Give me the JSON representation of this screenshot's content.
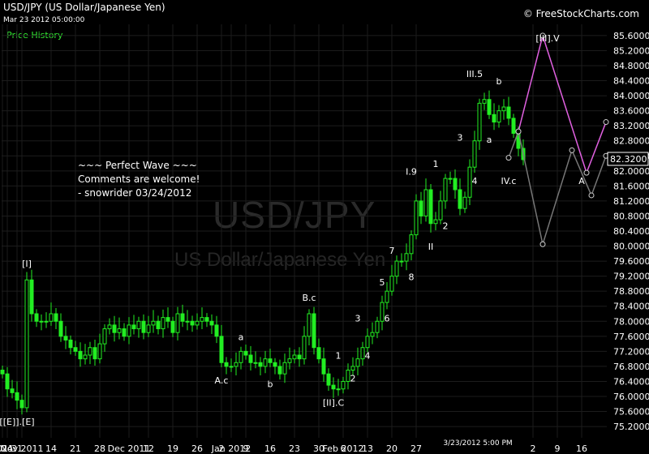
{
  "header": {
    "title": "USD/JPY (US Dollar/Japanese Yen)",
    "timestamp": "Mar 23 2012 05:00:00",
    "panel_label": "Price History",
    "brand": "© FreeStockCharts.com"
  },
  "watermark": {
    "symbol": "USD/JPY",
    "name": "US Dollar/Japanese Yen"
  },
  "comments": [
    "~~~ Perfect Wave ~~~",
    "Comments are welcome!",
    "- snowrider  03/24/2012"
  ],
  "chart_data": {
    "type": "candlestick",
    "last_price_label": "82.3200",
    "last_price": 82.32,
    "ylim": [
      74.9,
      85.9
    ],
    "y_ticks": [
      "85.6000",
      "85.2000",
      "84.8000",
      "84.4000",
      "84.0000",
      "83.6000",
      "83.2000",
      "82.8000",
      "82.4000",
      "82.0000",
      "81.6000",
      "81.2000",
      "80.8000",
      "80.4000",
      "80.0000",
      "79.6000",
      "79.2000",
      "78.8000",
      "78.4000",
      "78.0000",
      "77.6000",
      "77.2000",
      "76.8000",
      "76.4000",
      "76.0000",
      "75.6000",
      "75.2000"
    ],
    "x_ticks": [
      {
        "label": "2011",
        "i": 0
      },
      {
        "label": "24",
        "i": 1
      },
      {
        "label": "31",
        "i": 3
      },
      {
        "label": "Nov 2011",
        "i": 4
      },
      {
        "label": "14",
        "i": 10
      },
      {
        "label": "21",
        "i": 15
      },
      {
        "label": "28",
        "i": 20
      },
      {
        "label": "Dec 2011",
        "i": 26
      },
      {
        "label": "12",
        "i": 30
      },
      {
        "label": "19",
        "i": 35
      },
      {
        "label": "26",
        "i": 40
      },
      {
        "label": "2",
        "i": 45
      },
      {
        "label": "Jan 2012",
        "i": 47
      },
      {
        "label": "9",
        "i": 50
      },
      {
        "label": "16",
        "i": 55
      },
      {
        "label": "23",
        "i": 60
      },
      {
        "label": "30",
        "i": 65
      },
      {
        "label": "6",
        "i": 70
      },
      {
        "label": "Feb 2012",
        "i": 70
      },
      {
        "label": "13",
        "i": 75
      },
      {
        "label": "20",
        "i": 80
      },
      {
        "label": "27",
        "i": 85
      },
      {
        "label": "2",
        "i": 109
      },
      {
        "label": "9",
        "i": 114
      },
      {
        "label": "16",
        "i": 119
      }
    ],
    "cursor_label": "3/23/2012 5:00 PM",
    "closes": [
      76.6,
      76.2,
      76.1,
      75.9,
      75.7,
      79.1,
      78.2,
      78.0,
      78.0,
      78.0,
      78.2,
      78.0,
      77.6,
      77.5,
      77.3,
      77.2,
      77.0,
      77.1,
      77.3,
      77.0,
      77.4,
      77.8,
      77.9,
      77.7,
      77.8,
      77.6,
      77.9,
      77.8,
      78.0,
      77.7,
      77.9,
      78.0,
      77.8,
      78.1,
      78.0,
      77.7,
      78.2,
      78.0,
      78.0,
      77.9,
      78.0,
      78.1,
      78.0,
      77.9,
      77.6,
      76.9,
      76.8,
      76.8,
      76.9,
      77.2,
      77.1,
      76.9,
      76.9,
      76.8,
      77.0,
      76.9,
      76.8,
      76.6,
      76.9,
      77.0,
      77.1,
      77.0,
      77.6,
      78.2,
      77.3,
      77.0,
      76.6,
      76.3,
      76.2,
      76.2,
      76.4,
      76.7,
      76.8,
      77.0,
      77.3,
      77.6,
      77.7,
      78.0,
      78.5,
      78.8,
      79.2,
      79.6,
      79.6,
      79.8,
      80.3,
      81.2,
      80.8,
      81.5,
      80.6,
      80.7,
      81.2,
      81.8,
      81.8,
      81.5,
      81.0,
      81.3,
      82.1,
      82.8,
      83.8,
      83.9,
      83.5,
      83.3,
      83.6,
      83.7,
      83.4,
      83.0,
      82.6,
      82.3
    ],
    "wave_labels": [
      {
        "text": "[I]",
        "i": 5,
        "y": 79.45
      },
      {
        "text": "[[E]].[E]",
        "i": 3,
        "y": 75.25
      },
      {
        "text": "A.c",
        "i": 45,
        "y": 76.35
      },
      {
        "text": "a",
        "i": 49,
        "y": 77.5
      },
      {
        "text": "b",
        "i": 55,
        "y": 76.25
      },
      {
        "text": "B.c",
        "i": 63,
        "y": 78.55
      },
      {
        "text": "1",
        "i": 69,
        "y": 77.0
      },
      {
        "text": "[II].C",
        "i": 68,
        "y": 75.75
      },
      {
        "text": "2",
        "i": 72,
        "y": 76.4
      },
      {
        "text": "3",
        "i": 73,
        "y": 78.0
      },
      {
        "text": "4",
        "i": 75,
        "y": 77.0
      },
      {
        "text": "5",
        "i": 78,
        "y": 78.95
      },
      {
        "text": "6",
        "i": 79,
        "y": 78.0
      },
      {
        "text": "7",
        "i": 80,
        "y": 79.8
      },
      {
        "text": "8",
        "i": 84,
        "y": 79.1
      },
      {
        "text": "I.9",
        "i": 84,
        "y": 81.9
      },
      {
        "text": "1",
        "i": 89,
        "y": 82.1
      },
      {
        "text": "II",
        "i": 88,
        "y": 79.9
      },
      {
        "text": "2",
        "i": 91,
        "y": 80.45
      },
      {
        "text": "3",
        "i": 94,
        "y": 82.8
      },
      {
        "text": "4",
        "i": 97,
        "y": 81.65
      },
      {
        "text": "III.5",
        "i": 97,
        "y": 84.5
      },
      {
        "text": "b",
        "i": 102,
        "y": 84.3
      },
      {
        "text": "a",
        "i": 100,
        "y": 82.75
      },
      {
        "text": "IV.c",
        "i": 104,
        "y": 81.65
      },
      {
        "text": "[III].V",
        "i": 112,
        "y": 85.45
      },
      {
        "text": "A",
        "i": 119,
        "y": 81.65
      }
    ],
    "projection_bullish": {
      "color": "#e060e0",
      "points": [
        {
          "i": 106,
          "y": 83.05
        },
        {
          "i": 111,
          "y": 85.6
        },
        {
          "i": 120,
          "y": 81.95
        },
        {
          "i": 124,
          "y": 83.3
        }
      ]
    },
    "projection_bearish": {
      "color": "#777777",
      "points": [
        {
          "i": 104,
          "y": 82.35
        },
        {
          "i": 106,
          "y": 83.05
        },
        {
          "i": 111,
          "y": 80.05
        },
        {
          "i": 117,
          "y": 82.55
        },
        {
          "i": 121,
          "y": 81.35
        },
        {
          "i": 124,
          "y": 82.4
        }
      ]
    },
    "colors": {
      "up": "#22ee22",
      "down": "#22ee22",
      "grid": "#1c1c1c",
      "axis_text": "#ffffff",
      "price_box": "#ffffff"
    }
  }
}
